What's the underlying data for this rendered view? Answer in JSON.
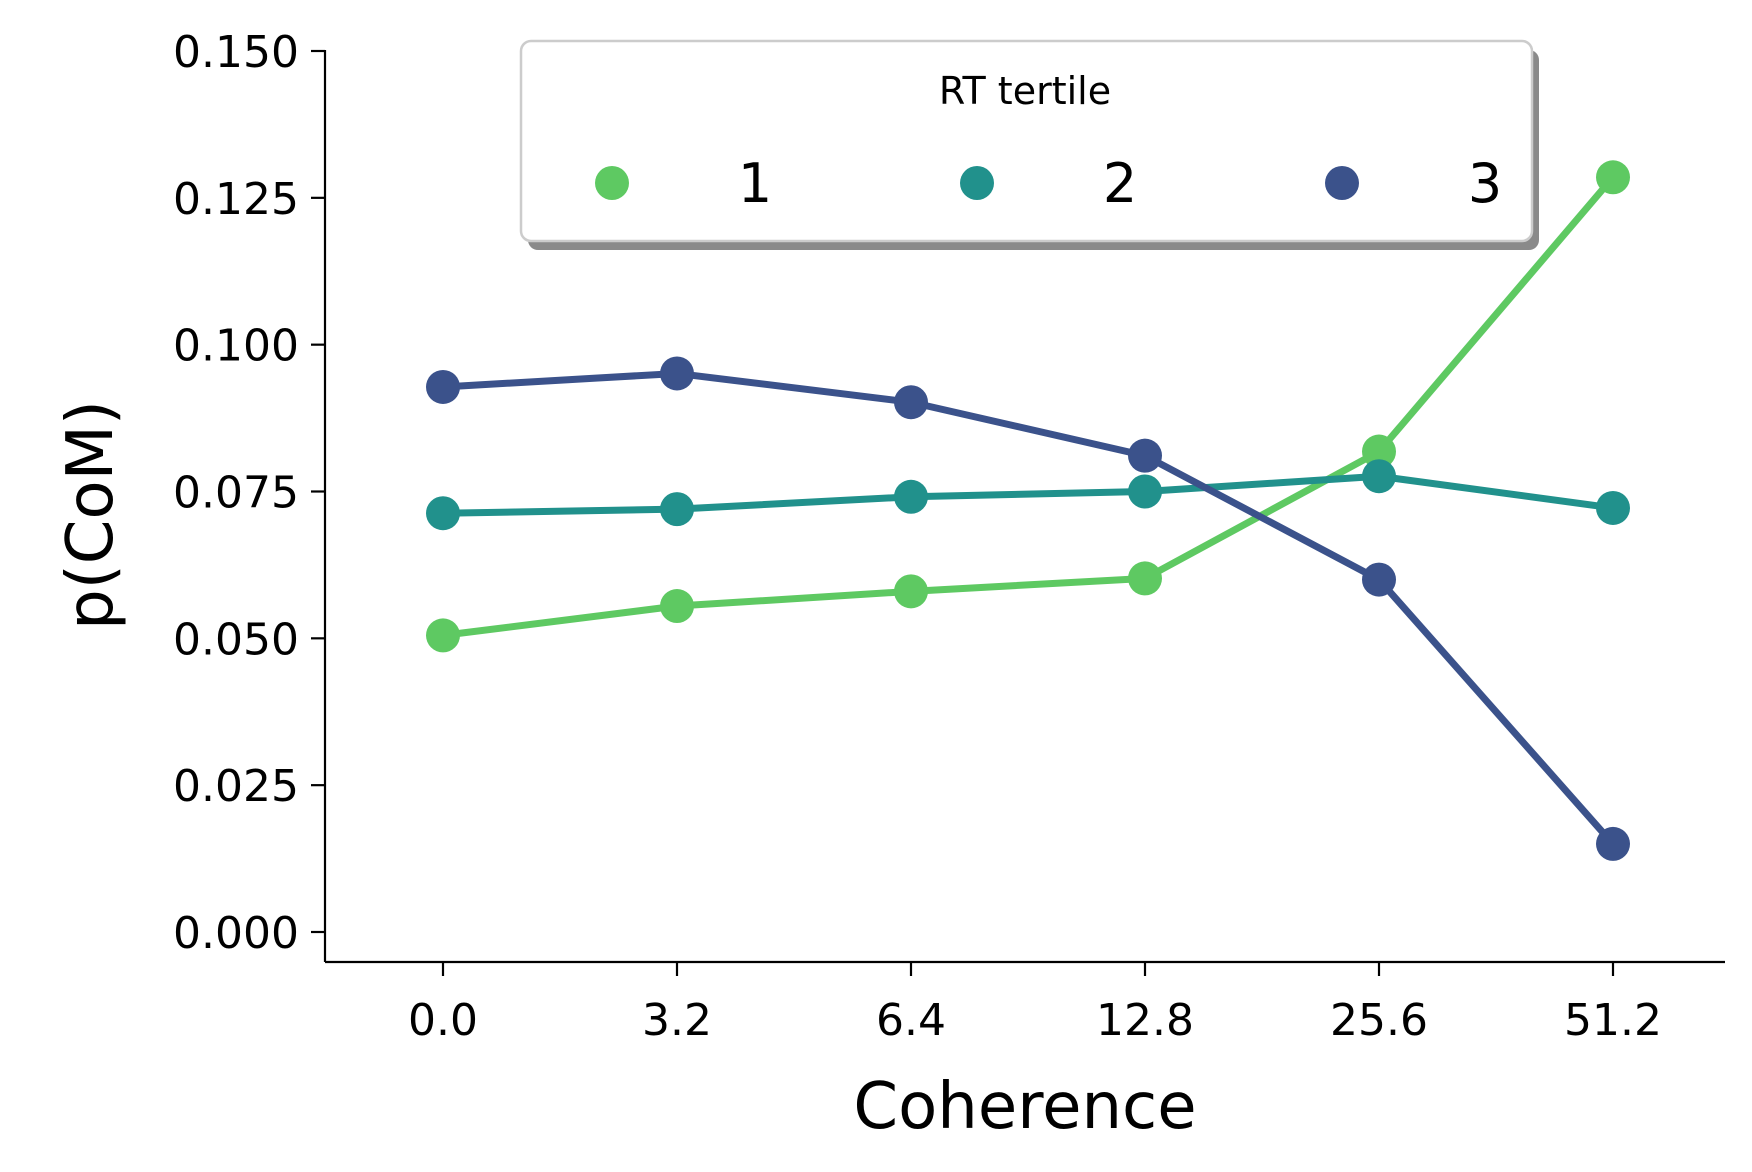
{
  "chart_data": {
    "type": "line",
    "xlabel": "Coherence",
    "ylabel": "p(CoM)",
    "categories": [
      "0.0",
      "3.2",
      "6.4",
      "12.8",
      "25.6",
      "51.2"
    ],
    "ylim": [
      -0.005,
      0.15
    ],
    "yticks": [
      "0.000",
      "0.025",
      "0.050",
      "0.075",
      "0.100",
      "0.125",
      "0.150"
    ],
    "grid": false,
    "legend": {
      "title": "RT tertile",
      "placement": "top-center",
      "columns": 3
    },
    "series": [
      {
        "name": "1",
        "color": "#5ec962",
        "values": [
          0.0505,
          0.0555,
          0.058,
          0.0602,
          0.0818,
          0.1285
        ]
      },
      {
        "name": "2",
        "color": "#21918c",
        "values": [
          0.0713,
          0.072,
          0.0741,
          0.075,
          0.0776,
          0.0722
        ]
      },
      {
        "name": "3",
        "color": "#3b528b",
        "values": [
          0.0928,
          0.0951,
          0.0902,
          0.0811,
          0.06,
          0.015
        ]
      }
    ]
  }
}
